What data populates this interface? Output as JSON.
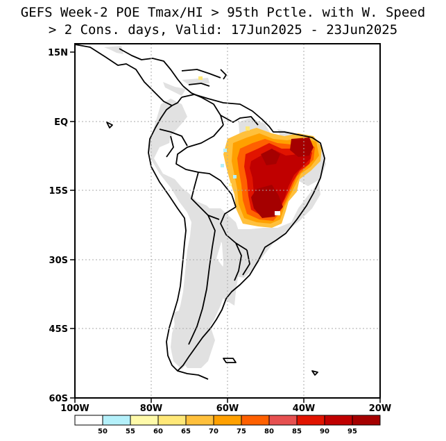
{
  "title_line1": "GEFS Week-2 POE Tmax/HI > 95th Pctle. with W. Speed",
  "title_line2": "> 2 Cons. days, Valid: 17Jun2025 - 23Jun2025",
  "lat_labels": [
    "15N",
    "EQ",
    "15S",
    "30S",
    "45S",
    "60S"
  ],
  "lon_labels": [
    "100W",
    "80W",
    "60W",
    "40W",
    "20W"
  ],
  "colorbar": {
    "labels": [
      "50",
      "55",
      "60",
      "65",
      "70",
      "75",
      "80",
      "85",
      "90",
      "95"
    ],
    "colors": [
      "#ffffff",
      "#b4f0fa",
      "#fffaaa",
      "#ffe878",
      "#ffc03c",
      "#ffa000",
      "#ff6000",
      "#e65050",
      "#e11400",
      "#c00000",
      "#a50000"
    ]
  },
  "colors": {
    "land_mask": "#e1e1e1",
    "coastline": "#000000",
    "grid": "#aaaaaa"
  }
}
